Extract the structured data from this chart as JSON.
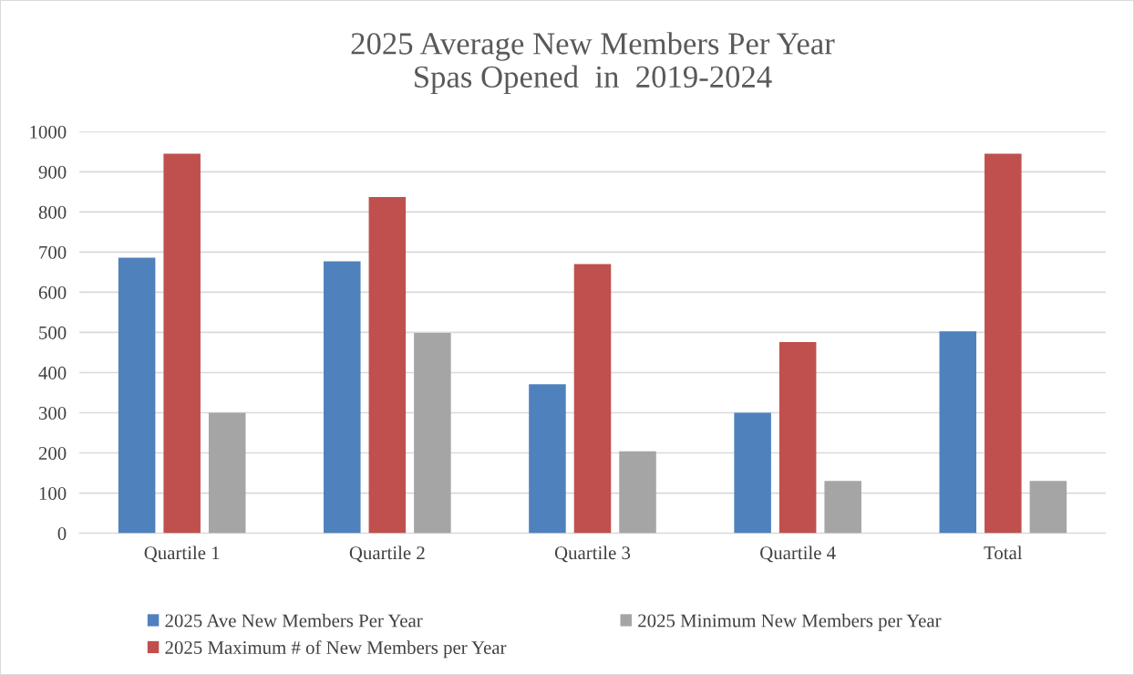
{
  "chart_data": {
    "type": "bar",
    "title": "2025 Average New Members Per Year\nSpas Opened  in  2019-2024",
    "categories": [
      "Quartile 1",
      "Quartile 2",
      "Quartile 3",
      "Quartile 4",
      "Total"
    ],
    "series": [
      {
        "name": "2025 Ave New Members Per Year",
        "color": "#4f81bd",
        "values": [
          686,
          677,
          371,
          300,
          503
        ]
      },
      {
        "name": "2025 Maximum # of New Members per Year",
        "color": "#c0504d",
        "values": [
          945,
          837,
          670,
          476,
          945
        ]
      },
      {
        "name": "2025 Minimum New Members per Year",
        "color": "#a5a5a5",
        "values": [
          300,
          499,
          204,
          130,
          130
        ]
      }
    ],
    "ylim": [
      0,
      1000
    ],
    "yticks": [
      0,
      100,
      200,
      300,
      400,
      500,
      600,
      700,
      800,
      900,
      1000
    ],
    "grid": "y",
    "legend": "bottom"
  }
}
